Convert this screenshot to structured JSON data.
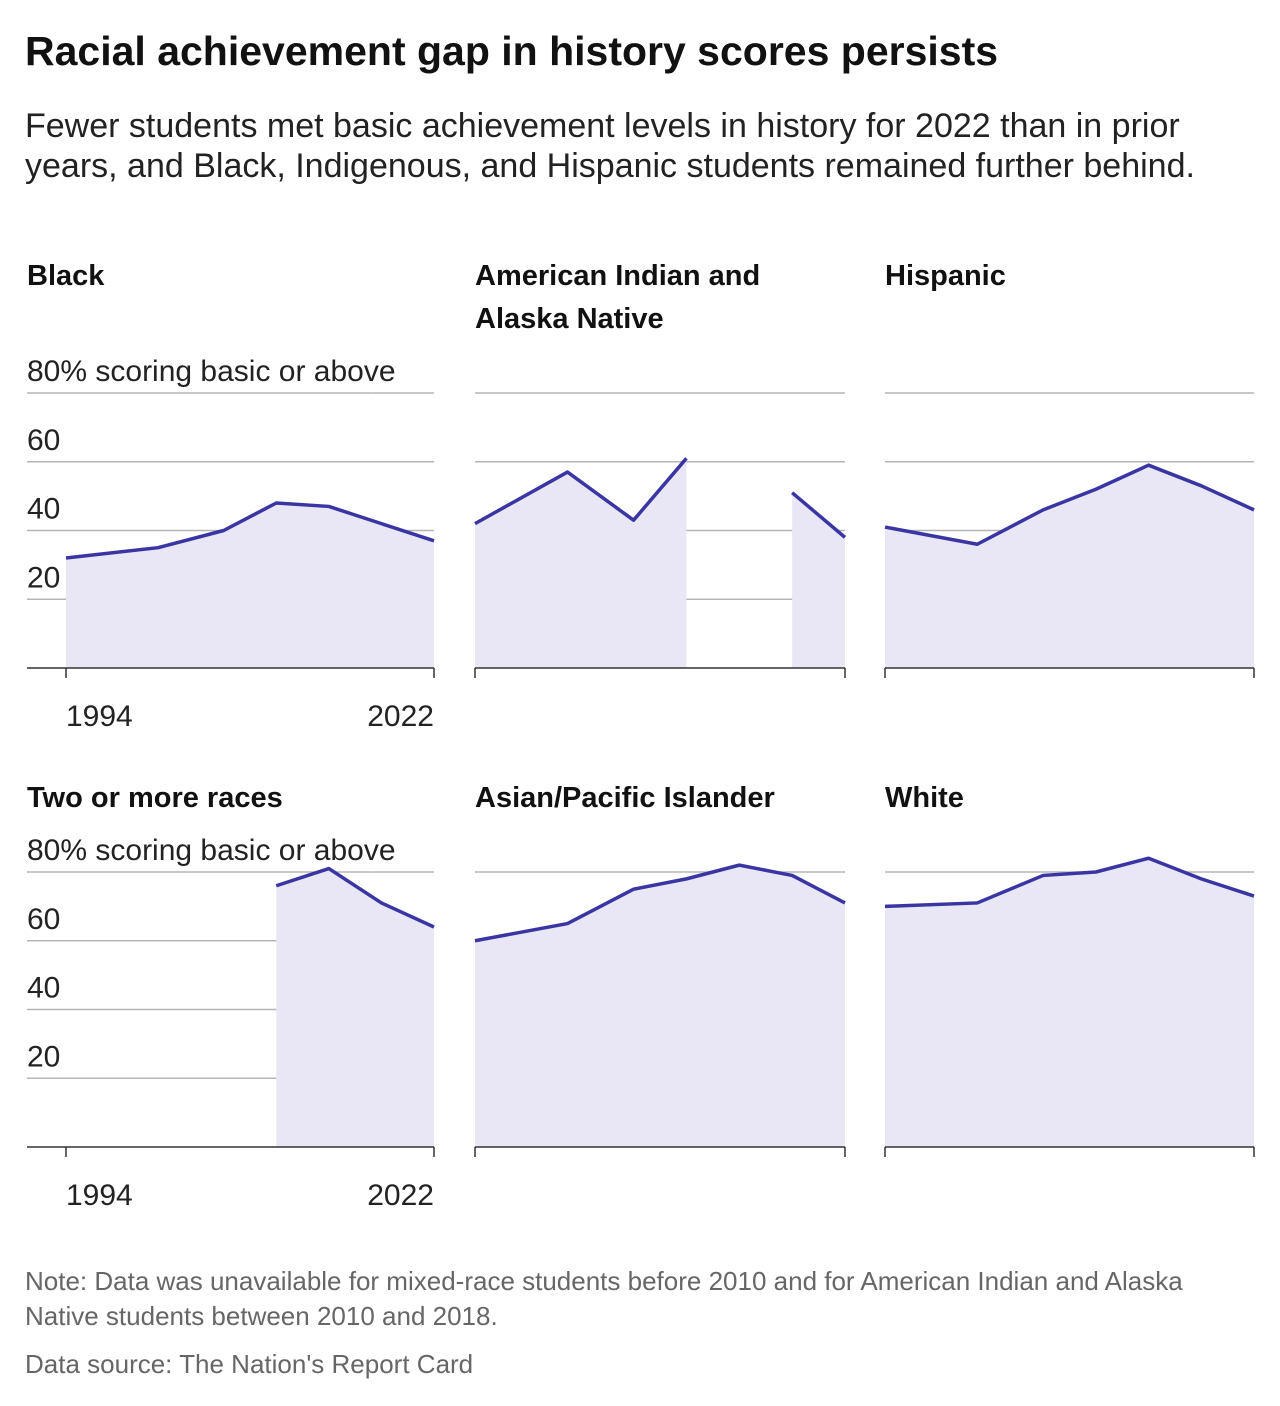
{
  "title": "Racial achievement gap in history scores persists",
  "subtitle": "Fewer students met basic achievement levels in history for 2022 than in prior years, and Black, Indigenous, and Hispanic students remained further behind.",
  "note": "Note: Data was unavailable for mixed-race students before 2010 and for American Indian and Alaska Native students between 2010 and 2018.",
  "source": "Data source: The Nation's Report Card",
  "chart_data": [
    {
      "type": "area",
      "title": "Black",
      "x": [
        1994,
        2001,
        2006,
        2010,
        2014,
        2018,
        2022
      ],
      "values": [
        32,
        35,
        40,
        48,
        47,
        42,
        37
      ],
      "color": "#3b35a4",
      "fill": "#e9e7f5",
      "xlim": [
        1994,
        2022
      ],
      "xticks": [
        1994,
        2022
      ],
      "ylim": [
        0,
        80
      ],
      "yticks": [
        20,
        40,
        60,
        {
          "value": 80,
          "label": "80% scoring basic or above"
        }
      ],
      "grid": true,
      "tick_labels": true
    },
    {
      "type": "area",
      "title": "American Indian and Alaska Native",
      "x": [
        1994,
        2001,
        2006,
        2010,
        2014,
        2018,
        2022
      ],
      "values": [
        42,
        57,
        43,
        61,
        null,
        51,
        38
      ],
      "color": "#3b35a4",
      "fill": "#e9e7f5",
      "xlim": [
        1994,
        2022
      ],
      "xticks": [
        1994,
        2022
      ],
      "ylim": [
        0,
        80
      ],
      "yticks": [
        20,
        40,
        60,
        80
      ],
      "grid": true,
      "tick_labels": false
    },
    {
      "type": "area",
      "title": "Hispanic",
      "x": [
        1994,
        2001,
        2006,
        2010,
        2014,
        2018,
        2022
      ],
      "values": [
        41,
        36,
        46,
        52,
        59,
        53,
        46
      ],
      "color": "#3b35a4",
      "fill": "#e9e7f5",
      "xlim": [
        1994,
        2022
      ],
      "xticks": [
        1994,
        2022
      ],
      "ylim": [
        0,
        80
      ],
      "yticks": [
        20,
        40,
        60,
        80
      ],
      "grid": true,
      "tick_labels": false
    },
    {
      "type": "area",
      "title": "Two or more races",
      "x": [
        1994,
        2001,
        2006,
        2010,
        2014,
        2018,
        2022
      ],
      "values": [
        null,
        null,
        null,
        76,
        81,
        71,
        64
      ],
      "color": "#3b35a4",
      "fill": "#e9e7f5",
      "xlim": [
        1994,
        2022
      ],
      "xticks": [
        1994,
        2022
      ],
      "ylim": [
        0,
        80
      ],
      "yticks": [
        20,
        40,
        60,
        {
          "value": 80,
          "label": "80% scoring basic or above"
        }
      ],
      "grid": true,
      "tick_labels": true
    },
    {
      "type": "area",
      "title": "Asian/Pacific Islander",
      "x": [
        1994,
        2001,
        2006,
        2010,
        2014,
        2018,
        2022
      ],
      "values": [
        60,
        65,
        75,
        78,
        82,
        79,
        71
      ],
      "color": "#3b35a4",
      "fill": "#e9e7f5",
      "xlim": [
        1994,
        2022
      ],
      "xticks": [
        1994,
        2022
      ],
      "ylim": [
        0,
        80
      ],
      "yticks": [
        20,
        40,
        60,
        80
      ],
      "grid": true,
      "tick_labels": false
    },
    {
      "type": "area",
      "title": "White",
      "x": [
        1994,
        2001,
        2006,
        2010,
        2014,
        2018,
        2022
      ],
      "values": [
        70,
        71,
        79,
        80,
        84,
        78,
        73
      ],
      "color": "#3b35a4",
      "fill": "#e9e7f5",
      "xlim": [
        1994,
        2022
      ],
      "xticks": [
        1994,
        2022
      ],
      "ylim": [
        0,
        80
      ],
      "yticks": [
        20,
        40,
        60,
        80
      ],
      "grid": true,
      "tick_labels": false
    }
  ]
}
